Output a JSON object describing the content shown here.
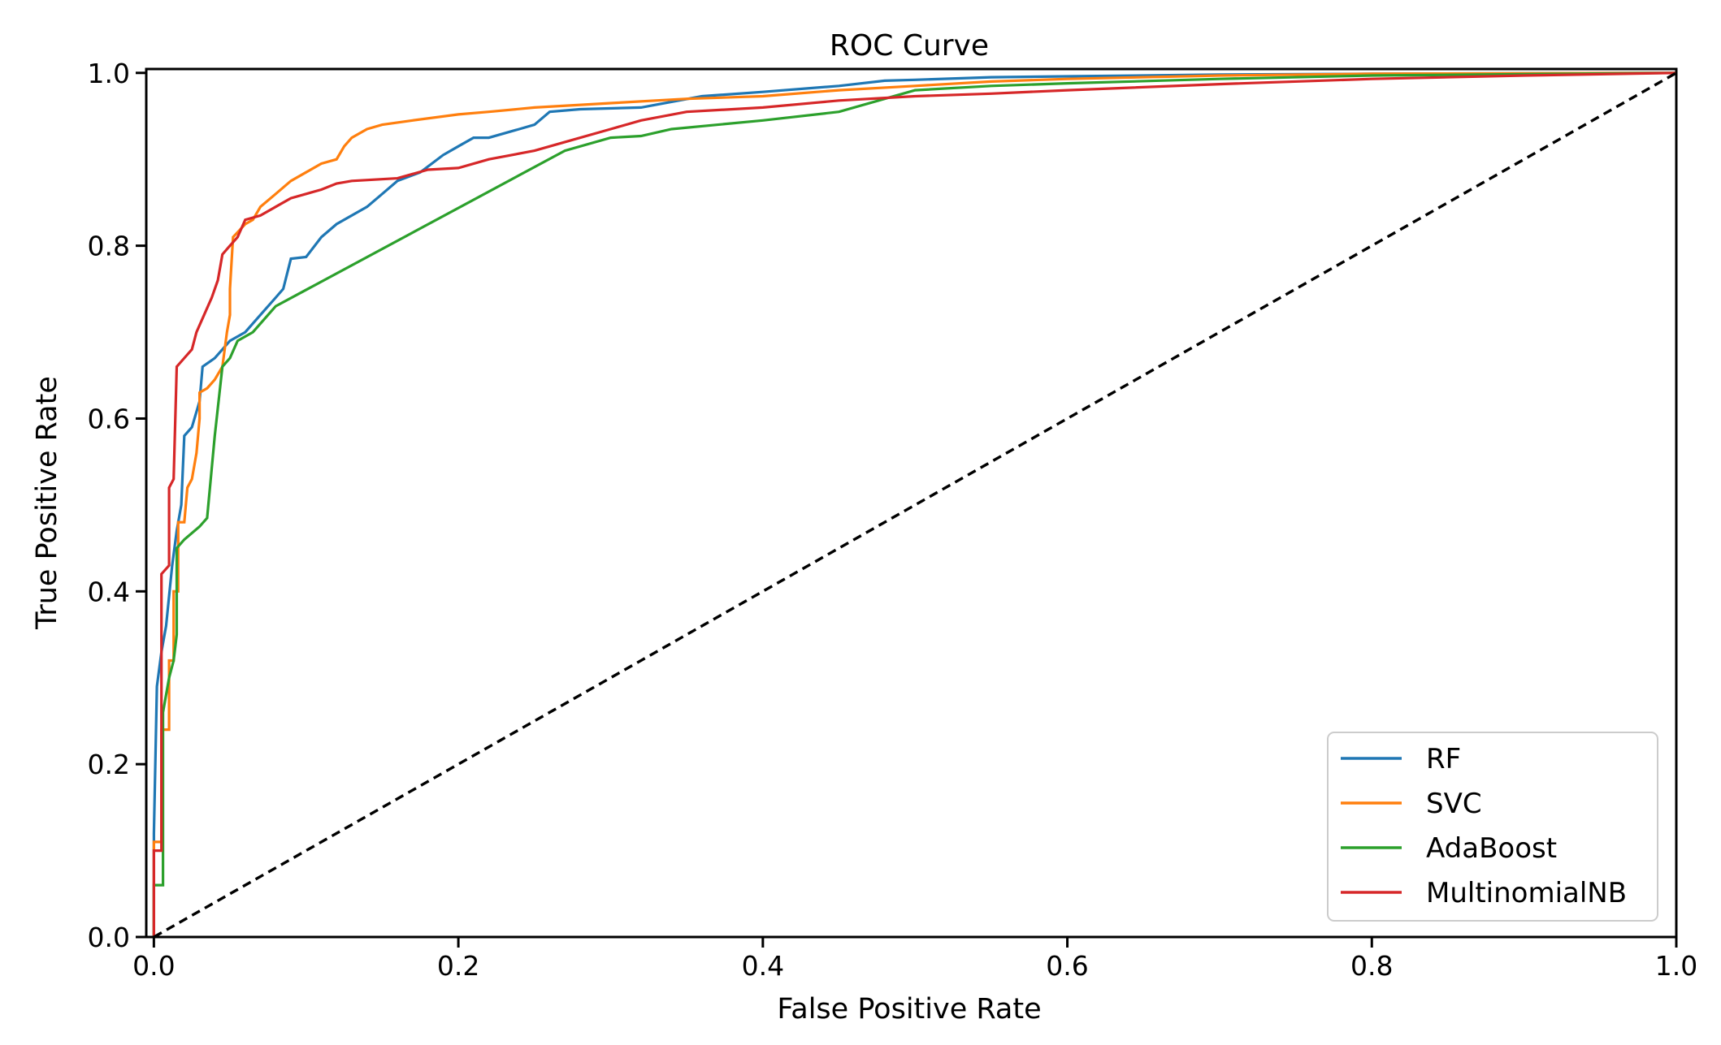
{
  "chart_data": {
    "type": "line",
    "title": "ROC Curve",
    "xlabel": "False Positive Rate",
    "ylabel": "True Positive Rate",
    "xlim": [
      0.0,
      1.0
    ],
    "ylim": [
      0.0,
      1.0
    ],
    "x_ticks": [
      {
        "value": 0.0,
        "label": "0.0"
      },
      {
        "value": 0.2,
        "label": "0.2"
      },
      {
        "value": 0.4,
        "label": "0.4"
      },
      {
        "value": 0.6,
        "label": "0.6"
      },
      {
        "value": 0.8,
        "label": "0.8"
      },
      {
        "value": 1.0,
        "label": "1.0"
      }
    ],
    "y_ticks": [
      {
        "value": 0.0,
        "label": "0.0"
      },
      {
        "value": 0.2,
        "label": "0.2"
      },
      {
        "value": 0.4,
        "label": "0.4"
      },
      {
        "value": 0.6,
        "label": "0.6"
      },
      {
        "value": 0.8,
        "label": "0.8"
      },
      {
        "value": 1.0,
        "label": "1.0"
      }
    ],
    "grid": false,
    "legend_position": "lower-right",
    "series": [
      {
        "name": "RF",
        "color": "#1f77b4",
        "points": [
          [
            0,
            0
          ],
          [
            0,
            0.12
          ],
          [
            0.002,
            0.29
          ],
          [
            0.005,
            0.33
          ],
          [
            0.008,
            0.36
          ],
          [
            0.012,
            0.43
          ],
          [
            0.015,
            0.47
          ],
          [
            0.018,
            0.5
          ],
          [
            0.02,
            0.58
          ],
          [
            0.025,
            0.59
          ],
          [
            0.03,
            0.62
          ],
          [
            0.032,
            0.66
          ],
          [
            0.04,
            0.67
          ],
          [
            0.05,
            0.69
          ],
          [
            0.06,
            0.7
          ],
          [
            0.07,
            0.72
          ],
          [
            0.08,
            0.74
          ],
          [
            0.085,
            0.75
          ],
          [
            0.09,
            0.785
          ],
          [
            0.1,
            0.787
          ],
          [
            0.11,
            0.81
          ],
          [
            0.12,
            0.825
          ],
          [
            0.14,
            0.845
          ],
          [
            0.15,
            0.86
          ],
          [
            0.16,
            0.875
          ],
          [
            0.175,
            0.885
          ],
          [
            0.19,
            0.905
          ],
          [
            0.2,
            0.915
          ],
          [
            0.21,
            0.925
          ],
          [
            0.22,
            0.925
          ],
          [
            0.24,
            0.935
          ],
          [
            0.25,
            0.94
          ],
          [
            0.26,
            0.955
          ],
          [
            0.28,
            0.958
          ],
          [
            0.32,
            0.96
          ],
          [
            0.36,
            0.973
          ],
          [
            0.4,
            0.978
          ],
          [
            0.45,
            0.985
          ],
          [
            0.48,
            0.991
          ],
          [
            0.5,
            0.992
          ],
          [
            0.55,
            0.995
          ],
          [
            0.6,
            0.996
          ],
          [
            0.7,
            0.998
          ],
          [
            0.8,
            0.999
          ],
          [
            1.0,
            1.0
          ]
        ]
      },
      {
        "name": "SVC",
        "color": "#ff7f0e",
        "points": [
          [
            0,
            0
          ],
          [
            0,
            0.11
          ],
          [
            0.005,
            0.11
          ],
          [
            0.005,
            0.24
          ],
          [
            0.01,
            0.24
          ],
          [
            0.01,
            0.32
          ],
          [
            0.013,
            0.32
          ],
          [
            0.013,
            0.4
          ],
          [
            0.016,
            0.4
          ],
          [
            0.016,
            0.48
          ],
          [
            0.02,
            0.48
          ],
          [
            0.022,
            0.52
          ],
          [
            0.025,
            0.53
          ],
          [
            0.028,
            0.56
          ],
          [
            0.03,
            0.6
          ],
          [
            0.03,
            0.63
          ],
          [
            0.035,
            0.635
          ],
          [
            0.04,
            0.645
          ],
          [
            0.045,
            0.66
          ],
          [
            0.048,
            0.7
          ],
          [
            0.05,
            0.72
          ],
          [
            0.05,
            0.75
          ],
          [
            0.052,
            0.81
          ],
          [
            0.06,
            0.825
          ],
          [
            0.065,
            0.83
          ],
          [
            0.07,
            0.845
          ],
          [
            0.08,
            0.86
          ],
          [
            0.09,
            0.875
          ],
          [
            0.1,
            0.885
          ],
          [
            0.11,
            0.895
          ],
          [
            0.12,
            0.9
          ],
          [
            0.125,
            0.915
          ],
          [
            0.13,
            0.925
          ],
          [
            0.14,
            0.935
          ],
          [
            0.15,
            0.94
          ],
          [
            0.17,
            0.945
          ],
          [
            0.2,
            0.952
          ],
          [
            0.22,
            0.955
          ],
          [
            0.25,
            0.96
          ],
          [
            0.3,
            0.965
          ],
          [
            0.35,
            0.97
          ],
          [
            0.4,
            0.973
          ],
          [
            0.45,
            0.98
          ],
          [
            0.5,
            0.985
          ],
          [
            0.55,
            0.99
          ],
          [
            0.6,
            0.993
          ],
          [
            0.7,
            0.997
          ],
          [
            0.8,
            0.999
          ],
          [
            1.0,
            1.0
          ]
        ]
      },
      {
        "name": "AdaBoost",
        "color": "#2ca02c",
        "points": [
          [
            0,
            0
          ],
          [
            0,
            0.06
          ],
          [
            0.006,
            0.06
          ],
          [
            0.006,
            0.26
          ],
          [
            0.01,
            0.3
          ],
          [
            0.013,
            0.32
          ],
          [
            0.015,
            0.35
          ],
          [
            0.015,
            0.45
          ],
          [
            0.02,
            0.46
          ],
          [
            0.03,
            0.475
          ],
          [
            0.035,
            0.485
          ],
          [
            0.04,
            0.58
          ],
          [
            0.045,
            0.66
          ],
          [
            0.05,
            0.67
          ],
          [
            0.055,
            0.69
          ],
          [
            0.065,
            0.7
          ],
          [
            0.075,
            0.72
          ],
          [
            0.08,
            0.73
          ],
          [
            0.27,
            0.91
          ],
          [
            0.3,
            0.925
          ],
          [
            0.32,
            0.927
          ],
          [
            0.34,
            0.935
          ],
          [
            0.4,
            0.945
          ],
          [
            0.45,
            0.955
          ],
          [
            0.48,
            0.97
          ],
          [
            0.5,
            0.98
          ],
          [
            0.55,
            0.985
          ],
          [
            0.6,
            0.988
          ],
          [
            0.7,
            0.993
          ],
          [
            0.8,
            0.997
          ],
          [
            1.0,
            1.0
          ]
        ]
      },
      {
        "name": "MultinomialNB",
        "color": "#d62728",
        "points": [
          [
            0,
            0
          ],
          [
            0,
            0.1
          ],
          [
            0.005,
            0.1
          ],
          [
            0.005,
            0.42
          ],
          [
            0.01,
            0.43
          ],
          [
            0.01,
            0.52
          ],
          [
            0.013,
            0.53
          ],
          [
            0.015,
            0.66
          ],
          [
            0.02,
            0.67
          ],
          [
            0.025,
            0.68
          ],
          [
            0.028,
            0.7
          ],
          [
            0.033,
            0.72
          ],
          [
            0.038,
            0.74
          ],
          [
            0.042,
            0.76
          ],
          [
            0.045,
            0.79
          ],
          [
            0.05,
            0.8
          ],
          [
            0.055,
            0.81
          ],
          [
            0.06,
            0.83
          ],
          [
            0.07,
            0.835
          ],
          [
            0.08,
            0.845
          ],
          [
            0.09,
            0.855
          ],
          [
            0.1,
            0.86
          ],
          [
            0.11,
            0.865
          ],
          [
            0.12,
            0.872
          ],
          [
            0.13,
            0.875
          ],
          [
            0.16,
            0.878
          ],
          [
            0.18,
            0.888
          ],
          [
            0.2,
            0.89
          ],
          [
            0.22,
            0.9
          ],
          [
            0.25,
            0.91
          ],
          [
            0.27,
            0.92
          ],
          [
            0.3,
            0.935
          ],
          [
            0.32,
            0.945
          ],
          [
            0.35,
            0.955
          ],
          [
            0.4,
            0.96
          ],
          [
            0.45,
            0.968
          ],
          [
            0.5,
            0.973
          ],
          [
            0.55,
            0.976
          ],
          [
            0.6,
            0.98
          ],
          [
            0.7,
            0.987
          ],
          [
            0.8,
            0.993
          ],
          [
            0.9,
            0.997
          ],
          [
            1.0,
            1.0
          ]
        ]
      }
    ],
    "reference_line": {
      "name": "chance",
      "color": "#000000",
      "style": "dashed",
      "points": [
        [
          0,
          0
        ],
        [
          1,
          1
        ]
      ]
    }
  }
}
